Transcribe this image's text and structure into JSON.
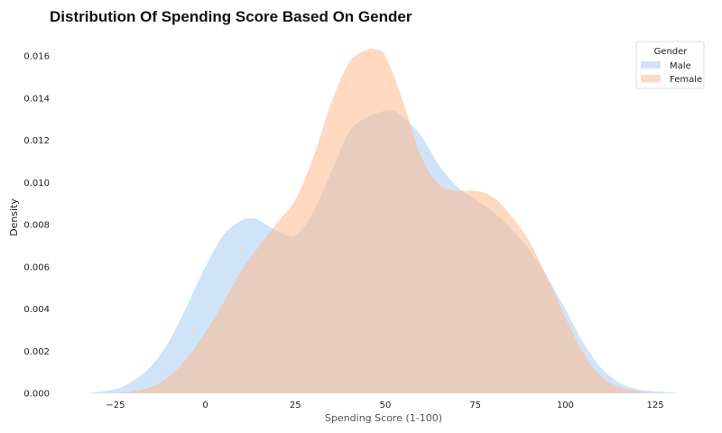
{
  "chart_data": {
    "type": "area",
    "title": "Distribution Of Spending Score Based On Gender",
    "xlabel": "Spending Score (1-100)",
    "ylabel": "Density",
    "xlim": [
      -33,
      132
    ],
    "ylim": [
      0,
      0.0172
    ],
    "xticks": [
      "−25",
      "0",
      "25",
      "50",
      "75",
      "100",
      "125"
    ],
    "xtick_values": [
      -25,
      0,
      25,
      50,
      75,
      100,
      125
    ],
    "yticks": [
      "0.000",
      "0.002",
      "0.004",
      "0.006",
      "0.008",
      "0.010",
      "0.012",
      "0.014",
      "0.016"
    ],
    "ytick_values": [
      0,
      0.002,
      0.004,
      0.006,
      0.008,
      0.01,
      0.012,
      0.014,
      0.016
    ],
    "grid": false,
    "legend": {
      "title": "Gender",
      "placement": "top-right"
    },
    "series": [
      {
        "name": "Male",
        "color": "#a1c9f4",
        "x": [
          -33,
          -25,
          -20,
          -15,
          -10,
          -5,
          0,
          5,
          10,
          13,
          15,
          20,
          25,
          30,
          35,
          40,
          45,
          50,
          52,
          55,
          60,
          65,
          70,
          75,
          80,
          85,
          90,
          95,
          100,
          105,
          110,
          115,
          120,
          125,
          132
        ],
        "y": [
          0.0,
          0.0002,
          0.0006,
          0.0013,
          0.0025,
          0.0042,
          0.006,
          0.0075,
          0.0082,
          0.0083,
          0.0082,
          0.0077,
          0.0075,
          0.0086,
          0.0105,
          0.0124,
          0.0131,
          0.0134,
          0.0134,
          0.0131,
          0.0122,
          0.0108,
          0.0098,
          0.0092,
          0.0086,
          0.0078,
          0.0068,
          0.0055,
          0.004,
          0.0024,
          0.0012,
          0.0005,
          0.0002,
          0.0001,
          0.0
        ]
      },
      {
        "name": "Female",
        "color": "#ffb482",
        "x": [
          -33,
          -25,
          -20,
          -15,
          -10,
          -5,
          0,
          5,
          10,
          15,
          20,
          25,
          30,
          35,
          40,
          45,
          47,
          50,
          55,
          60,
          65,
          70,
          75,
          80,
          85,
          90,
          95,
          100,
          105,
          110,
          115,
          120,
          125,
          132
        ],
        "y": [
          0.0,
          0.0,
          0.0001,
          0.0003,
          0.0008,
          0.0017,
          0.0029,
          0.0043,
          0.0058,
          0.007,
          0.0081,
          0.0092,
          0.0112,
          0.0138,
          0.0157,
          0.0163,
          0.0163,
          0.016,
          0.0138,
          0.0112,
          0.0099,
          0.0096,
          0.0096,
          0.0093,
          0.0084,
          0.0072,
          0.0055,
          0.0036,
          0.0019,
          0.0008,
          0.0003,
          0.0001,
          0.0,
          0.0
        ]
      }
    ]
  }
}
